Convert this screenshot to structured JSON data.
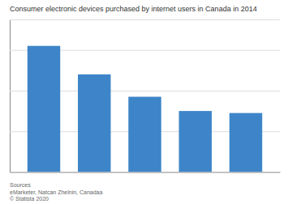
{
  "chart_data": {
    "type": "bar",
    "title": "Consumer electronic devices purchased by internet users in Canada in 2014",
    "categories": [
      null,
      null,
      null,
      null,
      null
    ],
    "values": [
      62,
      48,
      37,
      30,
      29
    ],
    "color": "#3d85c8",
    "ylim": [
      0,
      75
    ],
    "yticks": [
      20,
      40,
      60,
      75
    ],
    "grid": true,
    "tick_labels": false,
    "annotations": [
      "Sources",
      "eMarketer, Natcan Zhelnin, Canadaa",
      "© Statista 2020"
    ]
  }
}
